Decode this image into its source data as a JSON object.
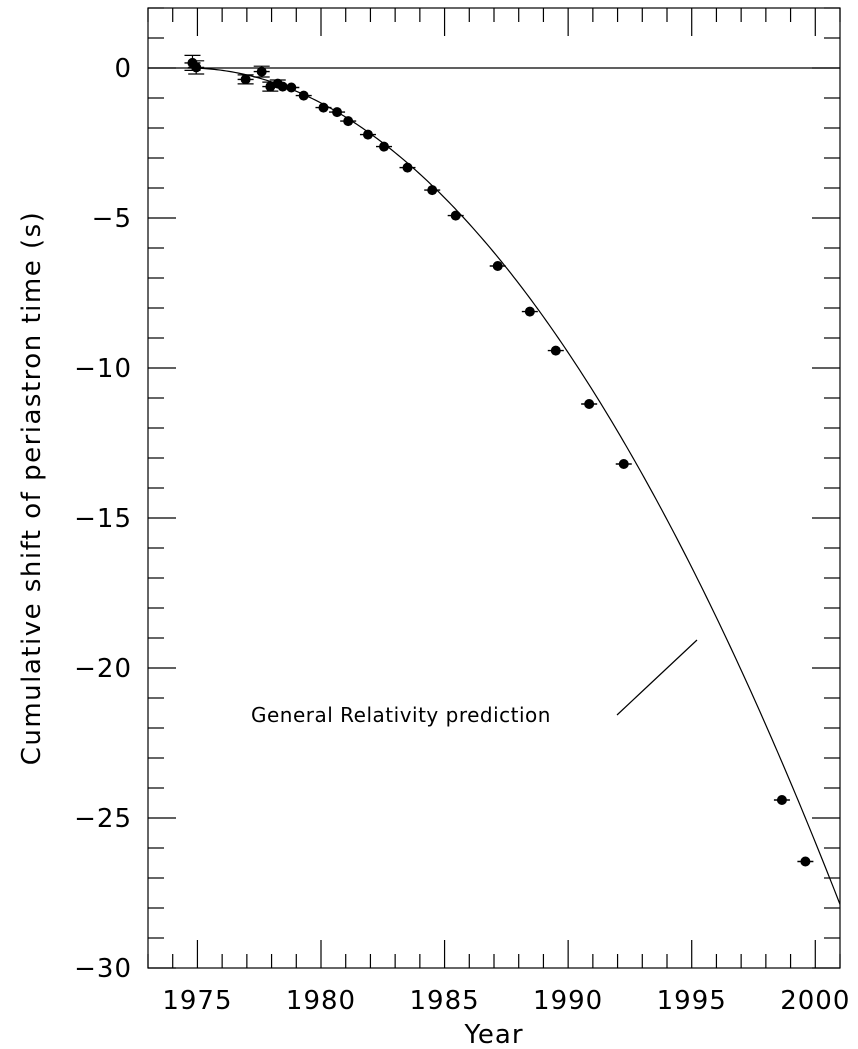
{
  "chart_data": {
    "type": "scatter",
    "title": "",
    "xlabel": "Year",
    "ylabel": "Cumulative shift of periastron time (s)",
    "xlim": [
      1973,
      2001
    ],
    "ylim": [
      -30,
      2
    ],
    "x_ticks": [
      1975,
      1980,
      1985,
      1990,
      1995,
      2000
    ],
    "x_tick_labels": [
      "1975",
      "1980",
      "1985",
      "1990",
      "1995",
      "2000"
    ],
    "y_ticks": [
      0,
      -5,
      -10,
      -15,
      -20,
      -25,
      -30
    ],
    "y_tick_labels": [
      "0",
      "−5",
      "−10",
      "−15",
      "−20",
      "−25",
      "−30"
    ],
    "grid": false,
    "reference_line_y": 0,
    "annotation": "General Relativity prediction",
    "curve": {
      "description": "quadratic decay",
      "x0": 1974.6,
      "coefficient": -0.04
    },
    "series": [
      {
        "points": [
          {
            "x": 1974.8,
            "y": 0.17,
            "yerr": 0.25
          },
          {
            "x": 1974.95,
            "y": 0.02,
            "yerr": 0.22
          },
          {
            "x": 1976.95,
            "y": -0.38,
            "yerr": 0.15
          },
          {
            "x": 1977.6,
            "y": -0.12,
            "yerr": 0.18
          },
          {
            "x": 1977.95,
            "y": -0.62,
            "yerr": 0.15
          },
          {
            "x": 1978.25,
            "y": -0.52,
            "yerr": 0.12
          },
          {
            "x": 1978.45,
            "y": -0.62,
            "yerr": 0.1
          },
          {
            "x": 1978.8,
            "y": -0.65,
            "yerr": 0.1
          },
          {
            "x": 1979.3,
            "y": -0.92,
            "yerr": 0.08
          },
          {
            "x": 1980.1,
            "y": -1.32,
            "yerr": 0.08
          },
          {
            "x": 1980.65,
            "y": -1.47,
            "yerr": 0.08
          },
          {
            "x": 1981.1,
            "y": -1.77,
            "yerr": 0.08
          },
          {
            "x": 1981.9,
            "y": -2.22,
            "yerr": 0.08
          },
          {
            "x": 1982.55,
            "y": -2.62,
            "yerr": 0.08
          },
          {
            "x": 1983.5,
            "y": -3.32,
            "yerr": 0.08
          },
          {
            "x": 1984.5,
            "y": -4.07,
            "yerr": 0.08
          },
          {
            "x": 1985.45,
            "y": -4.92,
            "yerr": 0.08
          },
          {
            "x": 1987.15,
            "y": -6.6,
            "yerr": 0.08
          },
          {
            "x": 1988.45,
            "y": -8.12,
            "yerr": 0.08
          },
          {
            "x": 1989.5,
            "y": -9.42,
            "yerr": 0.08
          },
          {
            "x": 1990.85,
            "y": -11.2,
            "yerr": 0.08
          },
          {
            "x": 1992.25,
            "y": -13.2,
            "yerr": 0.08
          },
          {
            "x": 1998.65,
            "y": -24.4,
            "yerr": 0.08
          },
          {
            "x": 1999.6,
            "y": -26.45,
            "yerr": 0.08
          }
        ]
      }
    ]
  }
}
